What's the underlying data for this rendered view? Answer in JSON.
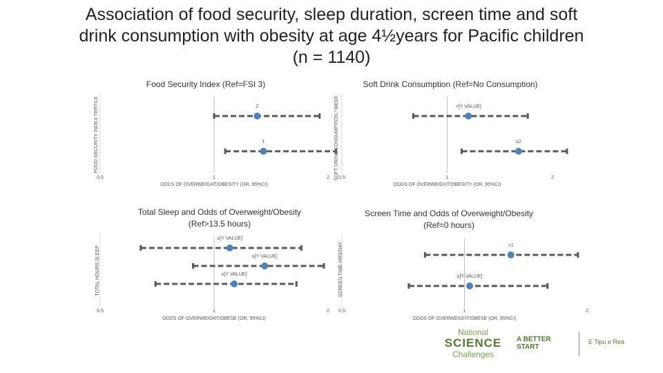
{
  "title": "Association of food security, sleep duration, screen time and soft drink consumption with obesity at age 4½years for Pacific children (n = 1140)",
  "colors": {
    "marker": "#4f81bd",
    "errorbar": "#595959",
    "refline": "#bfbfbf"
  },
  "chart_data": [
    {
      "type": "forest",
      "title": "Food Security Index (Ref=FSI 3)",
      "xlabel": "ODDS OF OVERWEIGHT/OBESITY (OR, 95%CI)",
      "ylabel": "FOOD SECURITY INDEX TERTILE",
      "x_ticks": [
        "0.5",
        "1",
        "2"
      ],
      "x_tick_values": [
        0.5,
        1,
        2
      ],
      "xlim": [
        0.5,
        2
      ],
      "x_scale": "log",
      "ref_line": 1,
      "points": [
        {
          "label": "2",
          "or": 1.3,
          "ci": [
            1.0,
            1.9
          ]
        },
        {
          "label": "1",
          "or": 1.35,
          "ci": [
            1.07,
            2.1
          ]
        }
      ]
    },
    {
      "type": "forest",
      "title": "Soft Drink Consumption (Ref=No Consumption)",
      "xlabel": "ODDS OF OVERWEIGHT/OBESITY (OR, 95%CI)",
      "ylabel": "SOFT DRINK CONSUMPTION / WEEK",
      "x_ticks": [
        "0.5",
        "1",
        "2"
      ],
      "x_tick_values": [
        0.5,
        1,
        2
      ],
      "xlim": [
        0.5,
        2
      ],
      "x_scale": "log",
      "ref_line": 1,
      "points": [
        {
          "label": ">[Y VALUE]",
          "or": 1.15,
          "ci": [
            0.8,
            1.7
          ]
        },
        {
          "label": "≤2",
          "or": 1.6,
          "ci": [
            1.1,
            2.2
          ]
        }
      ]
    },
    {
      "type": "forest",
      "title": "Total Sleep and Odds of Overweight/Obesity (Ref>13.5 hours)",
      "xlabel": "ODDS OF OVERWEIGHT/OBESE (OR, 95%CI)",
      "ylabel": "TOTAL HOURS SLEEP",
      "x_ticks": [
        "0.5",
        "1",
        "2"
      ],
      "x_tick_values": [
        0.5,
        1,
        2
      ],
      "xlim": [
        0.5,
        2
      ],
      "x_scale": "log",
      "ref_line": 1,
      "points": [
        {
          "label": "≤[Y VALUE]",
          "or": 1.1,
          "ci": [
            0.64,
            1.7
          ]
        },
        {
          "label": "≤[Y VALUE]",
          "or": 1.36,
          "ci": [
            0.88,
            1.95
          ]
        },
        {
          "label": "≤[Y VALUE]",
          "or": 1.13,
          "ci": [
            0.7,
            1.65
          ]
        }
      ]
    },
    {
      "type": "forest",
      "title": "Screen Time and Odds of Overweight/Obesity (Ref=0 hours)",
      "xlabel": "ODDS OF OVERWEIGHT/OBESE (OR, 95%CI)",
      "ylabel": "SCREEN TIME HRS/DAY",
      "x_ticks": [
        "0.5",
        "1",
        "2"
      ],
      "x_tick_values": [
        0.5,
        1,
        2
      ],
      "xlim": [
        0.5,
        2
      ],
      "x_scale": "log",
      "ref_line": 1,
      "points": [
        {
          "label": ">1",
          "or": 1.3,
          "ci": [
            0.8,
            1.9
          ]
        },
        {
          "label": "≤[Y VALUE]",
          "or": 1.03,
          "ci": [
            0.73,
            1.6
          ]
        }
      ]
    }
  ],
  "footer": {
    "nsc_line1": "National",
    "nsc_line2": "SCIENCE",
    "nsc_line3": "Challenges",
    "abs_line1": "A BETTER",
    "abs_line2": "START",
    "etipu": "E Tipu e Rea"
  }
}
